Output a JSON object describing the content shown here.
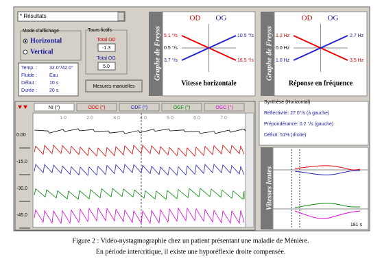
{
  "controls": {
    "dropdown": "* Résultats",
    "mode_title": "Mode d'affichage",
    "mode_horizontal": "Horizontal",
    "mode_vertical": "Vertical",
    "tours_title": "Tours fictifs",
    "total_od_label": "Total OD",
    "total_od": "-1.3",
    "total_og_label": "Total OG",
    "total_og": "5.0",
    "info": [
      [
        "Temp. :",
        "32.0°/42.0°"
      ],
      [
        "Fluide :",
        "Eau"
      ],
      [
        "Début :",
        "10 s"
      ],
      [
        "Durée :",
        "20 s"
      ]
    ],
    "button": "Mesures manuelles"
  },
  "freyss_speed": {
    "side_label": "Graphe de Freyss",
    "od": "OD",
    "og": "OG",
    "left_labels": [
      "5.1 °/s",
      "0.5 °/s",
      "3.7 °/s"
    ],
    "right_labels": [
      "10.5 °/s",
      "16.5 °/s"
    ],
    "caption": "Vitesse horizontale"
  },
  "freyss_freq": {
    "side_label": "Graphe de Freyss",
    "od": "OD",
    "og": "OG",
    "left_labels": [
      "1.2 Hz",
      "0.0 Hz",
      "1.0 Hz"
    ],
    "right_labels": [
      "2.7 Hz",
      "3.5 Hz"
    ],
    "caption": "Réponse en fréquence"
  },
  "traces": {
    "tabs": [
      "NI (°)",
      "ODC (°)",
      "ODF (°)",
      "OGF (°)",
      "OGC (°)"
    ],
    "time_labels": [
      "1.0",
      "2.0",
      "3.0",
      "4.0",
      "5.0",
      "6.0",
      "7.0"
    ],
    "y_labels": [
      "0.00",
      "-15.0",
      "-30.0",
      "-45.0"
    ]
  },
  "synthesis": {
    "title": "Synthèse (Horizontal)",
    "lines": [
      "Réflectivité: 27.0°/s (à gauche)",
      "Prépondérance: 0.2 °/s (gauche)",
      "Déficit: 51% (droite)"
    ]
  },
  "slow_phase": {
    "side_label": "Vitesses lentes",
    "duration": "181 s"
  },
  "caption": {
    "line1": "Figure 2 : Vidéo-nystagmographie chez un patient présentant une maladie de Ménière.",
    "line2": "En période intercritique, il existe une hyporéflexie droite compensée."
  }
}
